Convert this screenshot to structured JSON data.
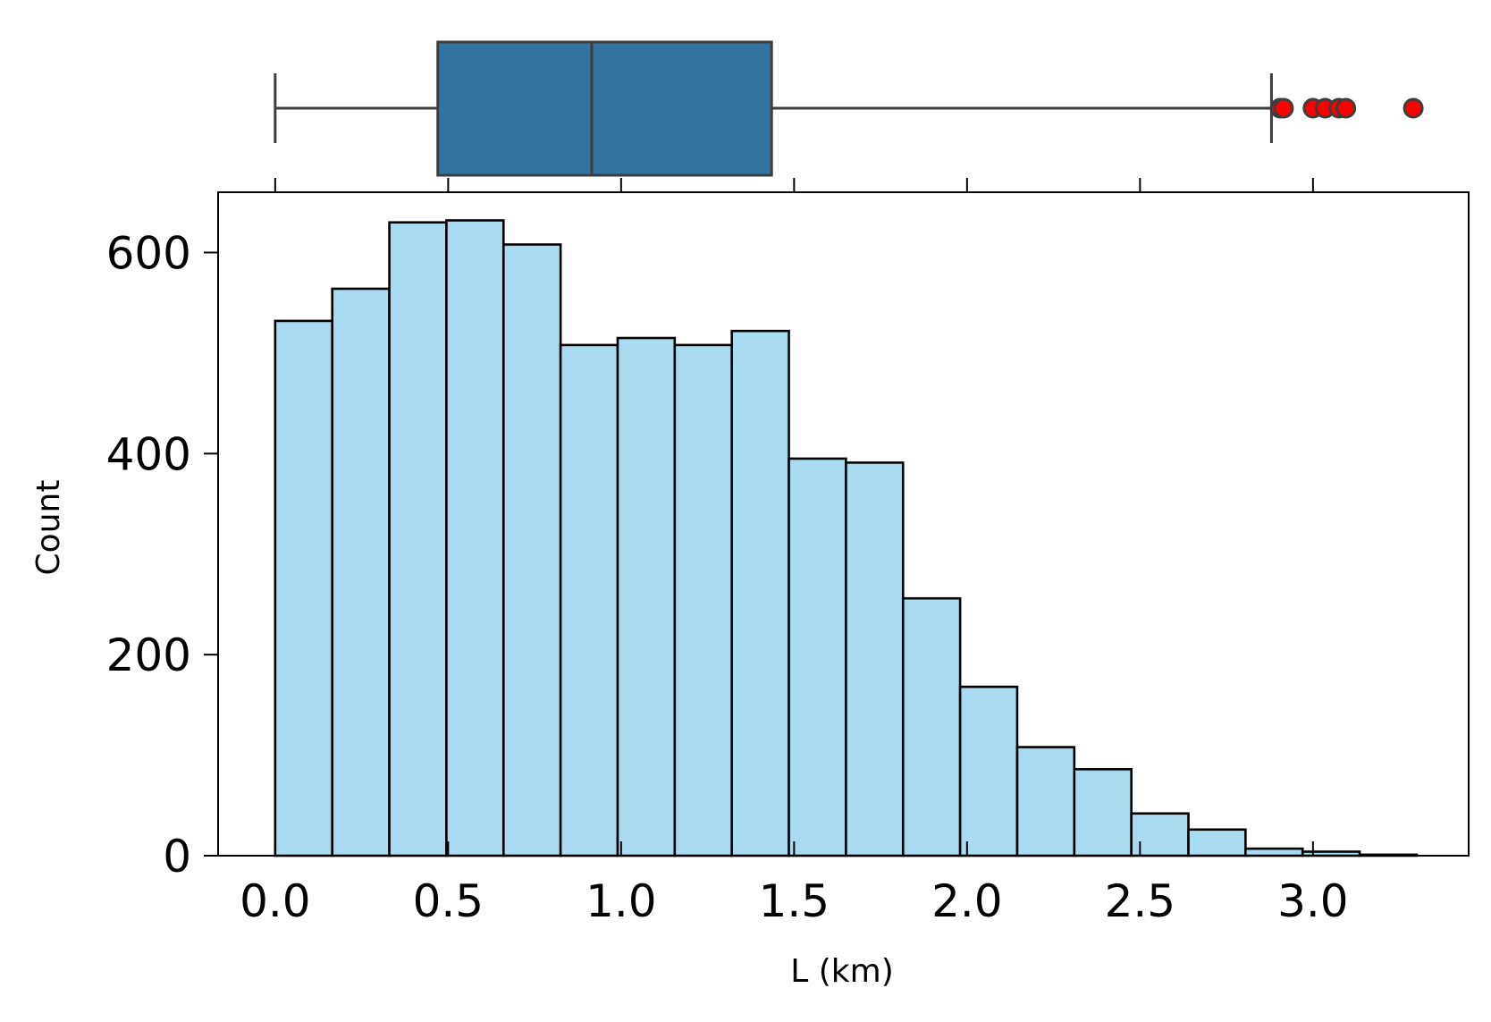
{
  "chart_data": {
    "type": "histogram",
    "xlabel": "L (km)",
    "ylabel": "Count",
    "xlim": [
      -0.165,
      3.45
    ],
    "ylim": [
      0,
      660
    ],
    "xticks": [
      "0.0",
      "0.5",
      "1.0",
      "1.5",
      "2.0",
      "2.5",
      "3.0"
    ],
    "xtick_values": [
      0.0,
      0.5,
      1.0,
      1.5,
      2.0,
      2.5,
      3.0
    ],
    "yticks": [
      "0",
      "200",
      "400",
      "600"
    ],
    "ytick_values": [
      0,
      200,
      400,
      600
    ],
    "bin_edges": [
      0.0,
      0.165,
      0.33,
      0.495,
      0.66,
      0.825,
      0.99,
      1.155,
      1.32,
      1.485,
      1.65,
      1.815,
      1.98,
      2.145,
      2.31,
      2.475,
      2.64,
      2.805,
      2.97,
      3.135,
      3.3
    ],
    "counts": [
      532,
      564,
      630,
      632,
      608,
      508,
      515,
      508,
      522,
      395,
      391,
      256,
      168,
      108,
      86,
      42,
      26,
      7,
      4,
      1
    ],
    "hist_color": "#a8dbef",
    "edge_color": "#000000",
    "boxplot": {
      "whisker_low": 0.0,
      "q1": 0.47,
      "median": 0.915,
      "q3": 1.435,
      "whisker_high": 2.88,
      "outliers": [
        2.905,
        2.915,
        3.0,
        3.035,
        3.075,
        3.095,
        3.29
      ],
      "box_color": "#3274a1",
      "line_color": "#3d3d3d",
      "outlier_color": "#ff0000"
    }
  }
}
